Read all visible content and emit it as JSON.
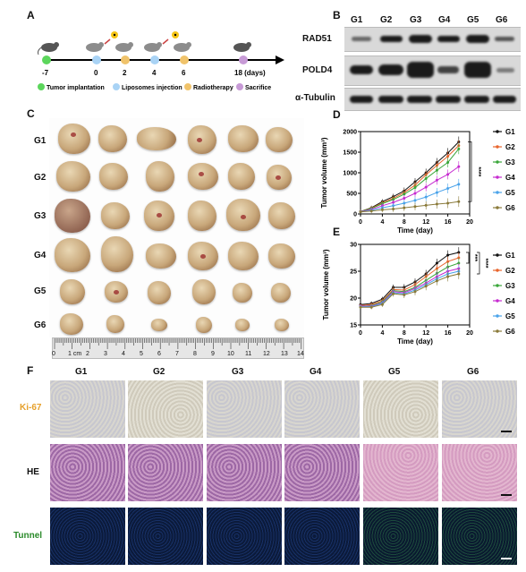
{
  "panels": {
    "A": "A",
    "B": "B",
    "C": "C",
    "D": "D",
    "E": "E",
    "F": "F"
  },
  "timeline": {
    "days": [
      "-7",
      "0",
      "2",
      "4",
      "6",
      "18 (days)"
    ],
    "legend": [
      "Tumor implantation",
      "Liposomes injection",
      "Radiotherapy",
      "Sacrifice"
    ],
    "colors": {
      "implant": "#5cd65c",
      "lipo": "#a9d3f5",
      "radio": "#f0c36b",
      "sac": "#c79ad6"
    }
  },
  "blot": {
    "groups": [
      "G1",
      "G2",
      "G3",
      "G4",
      "G5",
      "G6"
    ],
    "proteins": [
      "RAD51",
      "POLD4",
      "α-Tubulin"
    ]
  },
  "tumors": {
    "rows": [
      "G1",
      "G2",
      "G3",
      "G4",
      "G5",
      "G6"
    ],
    "ruler_cm": "1 cm",
    "ruler_ticks": [
      "0",
      "2",
      "3",
      "4",
      "5",
      "6",
      "7",
      "8",
      "9",
      "10",
      "11",
      "12",
      "13",
      "14"
    ]
  },
  "chart_data": [
    {
      "type": "line",
      "title": "",
      "xlabel": "Time (day)",
      "ylabel": "Tumor volume (mm³)",
      "xlim": [
        0,
        20
      ],
      "ylim": [
        0,
        2000
      ],
      "xticks": [
        0,
        4,
        8,
        12,
        16,
        20
      ],
      "yticks": [
        0,
        500,
        1000,
        1500,
        2000
      ],
      "x": [
        0,
        2,
        4,
        6,
        8,
        10,
        12,
        14,
        16,
        18
      ],
      "series": [
        {
          "name": "G1",
          "color": "#111111",
          "values": [
            60,
            150,
            300,
            420,
            560,
            780,
            1000,
            1250,
            1480,
            1750
          ]
        },
        {
          "name": "G2",
          "color": "#e8642c",
          "values": [
            60,
            140,
            270,
            380,
            520,
            700,
            950,
            1180,
            1400,
            1660
          ]
        },
        {
          "name": "G3",
          "color": "#3aa63a",
          "values": [
            60,
            130,
            250,
            350,
            480,
            640,
            860,
            1060,
            1250,
            1580
          ]
        },
        {
          "name": "G4",
          "color": "#c62ad0",
          "values": [
            55,
            110,
            200,
            280,
            380,
            500,
            650,
            820,
            960,
            1150
          ]
        },
        {
          "name": "G5",
          "color": "#4aa3ea",
          "values": [
            50,
            90,
            150,
            200,
            260,
            330,
            410,
            520,
            620,
            720
          ]
        },
        {
          "name": "G6",
          "color": "#8a7a3a",
          "values": [
            50,
            70,
            100,
            120,
            150,
            180,
            210,
            240,
            260,
            300
          ]
        }
      ],
      "significance": "****"
    },
    {
      "type": "line",
      "title": "",
      "xlabel": "Time (day)",
      "ylabel": "Tumor volume (mm³)",
      "xlim": [
        0,
        20
      ],
      "ylim": [
        15,
        30
      ],
      "xticks": [
        0,
        4,
        8,
        12,
        16,
        20
      ],
      "yticks": [
        15,
        20,
        25,
        30
      ],
      "x": [
        0,
        2,
        4,
        6,
        8,
        10,
        12,
        14,
        16,
        18
      ],
      "series": [
        {
          "name": "G1",
          "color": "#111111",
          "values": [
            18.8,
            19.0,
            19.8,
            22.0,
            22.0,
            23.0,
            24.5,
            26.5,
            28.0,
            28.5
          ]
        },
        {
          "name": "G2",
          "color": "#e8642c",
          "values": [
            18.6,
            18.8,
            19.5,
            21.6,
            21.5,
            22.5,
            24.0,
            25.5,
            26.8,
            27.5
          ]
        },
        {
          "name": "G3",
          "color": "#3aa63a",
          "values": [
            18.5,
            18.6,
            19.3,
            21.4,
            21.2,
            22.0,
            23.3,
            24.6,
            25.8,
            26.5
          ]
        },
        {
          "name": "G4",
          "color": "#c62ad0",
          "values": [
            18.5,
            18.5,
            19.1,
            21.2,
            21.0,
            21.8,
            22.8,
            24.0,
            25.0,
            25.5
          ]
        },
        {
          "name": "G5",
          "color": "#4aa3ea",
          "values": [
            18.4,
            18.4,
            19.0,
            21.0,
            20.8,
            21.5,
            22.5,
            23.6,
            24.5,
            25.0
          ]
        },
        {
          "name": "G6",
          "color": "#8a7a3a",
          "values": [
            18.3,
            18.3,
            18.8,
            20.8,
            20.6,
            21.2,
            22.2,
            23.2,
            24.0,
            24.5
          ]
        }
      ],
      "significance": [
        "***",
        "****"
      ]
    }
  ],
  "histology": {
    "groups": [
      "G1",
      "G2",
      "G3",
      "G4",
      "G5",
      "G6"
    ],
    "stains": [
      "Ki-67",
      "HE",
      "Tunnel"
    ],
    "stain_colors": {
      "Ki-67": "#e6a02b",
      "HE": "#111111",
      "Tunnel": "#2a8a2a"
    }
  }
}
